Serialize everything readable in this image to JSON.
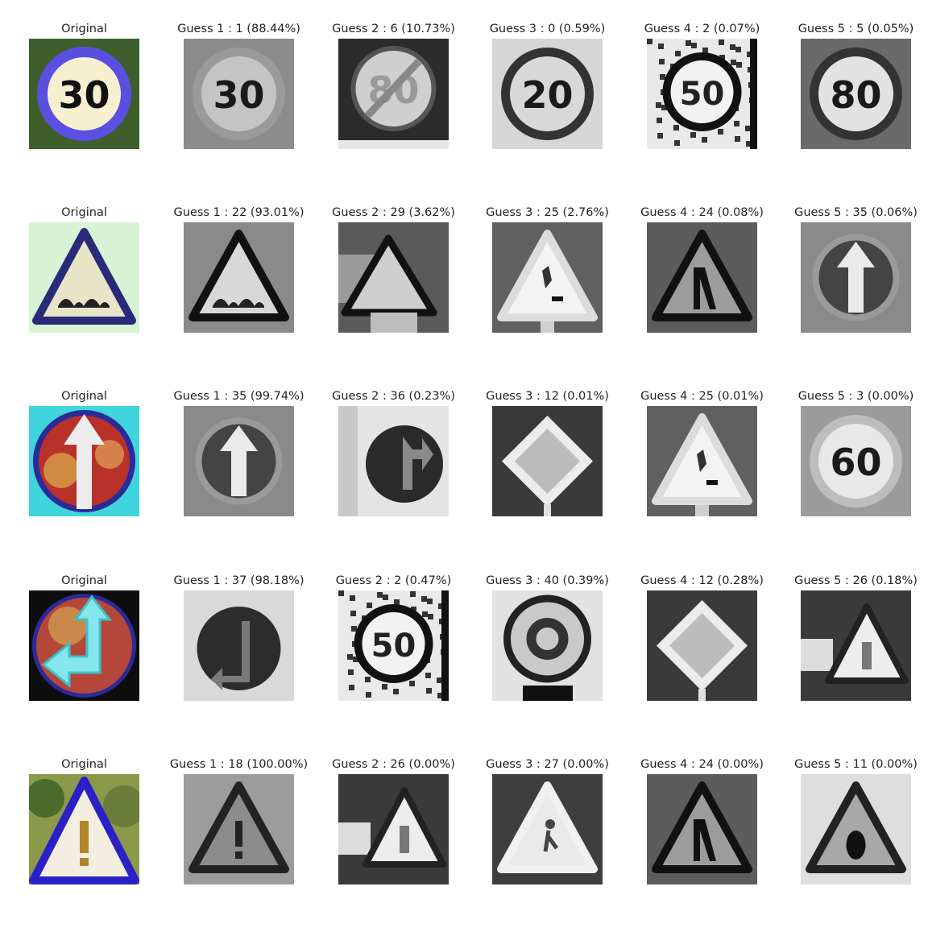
{
  "rows": [
    {
      "original_label": "Original",
      "original_sign": "speed-limit-30",
      "guesses": [
        {
          "label": "Guess 1 : 1 (88.44%)",
          "sign": "speed-limit-30"
        },
        {
          "label": "Guess 2 : 6 (10.73%)",
          "sign": "end-speed-limit-80"
        },
        {
          "label": "Guess 3 : 0 (0.59%)",
          "sign": "speed-limit-20"
        },
        {
          "label": "Guess 4 : 2 (0.07%)",
          "sign": "speed-limit-50-noisy"
        },
        {
          "label": "Guess 5 : 5 (0.05%)",
          "sign": "speed-limit-80"
        }
      ]
    },
    {
      "original_label": "Original",
      "original_sign": "bumpy-road",
      "guesses": [
        {
          "label": "Guess 1 : 22 (93.01%)",
          "sign": "bumpy-road"
        },
        {
          "label": "Guess 2 : 29 (3.62%)",
          "sign": "bicycles-crossing"
        },
        {
          "label": "Guess 3 : 25 (2.76%)",
          "sign": "road-work"
        },
        {
          "label": "Guess 4 : 24 (0.08%)",
          "sign": "road-narrows-right"
        },
        {
          "label": "Guess 5 : 35 (0.06%)",
          "sign": "ahead-only"
        }
      ]
    },
    {
      "original_label": "Original",
      "original_sign": "ahead-only",
      "guesses": [
        {
          "label": "Guess 1 : 35 (99.74%)",
          "sign": "ahead-only"
        },
        {
          "label": "Guess 2 : 36 (0.23%)",
          "sign": "go-straight-or-right"
        },
        {
          "label": "Guess 3 : 12 (0.01%)",
          "sign": "priority-road"
        },
        {
          "label": "Guess 4 : 25 (0.01%)",
          "sign": "road-work"
        },
        {
          "label": "Guess 5 : 3 (0.00%)",
          "sign": "speed-limit-60"
        }
      ]
    },
    {
      "original_label": "Original",
      "original_sign": "go-straight-or-left",
      "guesses": [
        {
          "label": "Guess 1 : 37 (98.18%)",
          "sign": "go-straight-or-left"
        },
        {
          "label": "Guess 2 : 2 (0.47%)",
          "sign": "speed-limit-50-noisy"
        },
        {
          "label": "Guess 3 : 40 (0.39%)",
          "sign": "roundabout"
        },
        {
          "label": "Guess 4 : 12 (0.28%)",
          "sign": "priority-road"
        },
        {
          "label": "Guess 5 : 26 (0.18%)",
          "sign": "traffic-signals"
        }
      ]
    },
    {
      "original_label": "Original",
      "original_sign": "general-caution",
      "guesses": [
        {
          "label": "Guess 1 : 18 (100.00%)",
          "sign": "general-caution"
        },
        {
          "label": "Guess 2 : 26 (0.00%)",
          "sign": "traffic-signals"
        },
        {
          "label": "Guess 3 : 27 (0.00%)",
          "sign": "pedestrians"
        },
        {
          "label": "Guess 4 : 24 (0.00%)",
          "sign": "road-narrows-right"
        },
        {
          "label": "Guess 5 : 11 (0.00%)",
          "sign": "right-of-way"
        }
      ]
    }
  ],
  "colors": {
    "caption": "#222222",
    "orig_blue": "#3a3ae0",
    "orig_red": "#c0302a",
    "orig_cyan": "#40d0d8",
    "orig_bg_green": "#3f6b2a"
  }
}
